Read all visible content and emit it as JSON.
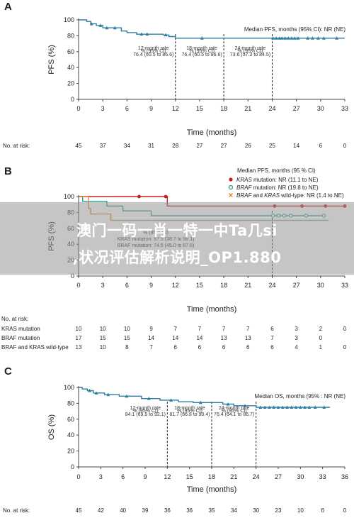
{
  "overlay": {
    "line1": "澳门一码一肖一特一中Ta几si",
    "line2": ",状况评估解析说明_OP1.880"
  },
  "colors": {
    "teal": "#2b7ea1",
    "red": "#c81e1e",
    "green": "#2a9d8f",
    "orange": "#e0872b",
    "gray": "#999999"
  },
  "chart_data": [
    {
      "panel": "A",
      "type": "line",
      "xlabel": "Time (months)",
      "ylabel": "PFS (%)",
      "xlim": [
        0,
        33
      ],
      "ylim": [
        0,
        100
      ],
      "xticks": [
        0,
        3,
        6,
        9,
        12,
        15,
        18,
        21,
        24,
        27,
        30,
        33
      ],
      "yticks": [
        0,
        20,
        40,
        60,
        80,
        100
      ],
      "summary": "Median PFS, months (95% CI): NR (NE)",
      "series": [
        {
          "color_key": "teal",
          "steps": [
            [
              0,
              100
            ],
            [
              1,
              100
            ],
            [
              1,
              98
            ],
            [
              1.5,
              98
            ],
            [
              1.5,
              95
            ],
            [
              2.2,
              95
            ],
            [
              2.2,
              93
            ],
            [
              3,
              93
            ],
            [
              3,
              90
            ],
            [
              5.3,
              90
            ],
            [
              5.3,
              86
            ],
            [
              6,
              86
            ],
            [
              6,
              84
            ],
            [
              7.2,
              84
            ],
            [
              7.2,
              82
            ],
            [
              10.5,
              82
            ],
            [
              10.5,
              81
            ],
            [
              11.2,
              81
            ],
            [
              11.2,
              79
            ],
            [
              12,
              79
            ],
            [
              12,
              77
            ],
            [
              33,
              77
            ]
          ],
          "censors": [
            [
              1.6,
              95
            ],
            [
              2.7,
              93
            ],
            [
              3.5,
              90
            ],
            [
              4.5,
              90
            ],
            [
              7.8,
              82
            ],
            [
              8.5,
              82
            ],
            [
              10.8,
              81
            ],
            [
              15.3,
              77
            ],
            [
              24.1,
              77
            ],
            [
              24.5,
              77
            ],
            [
              24.9,
              77
            ],
            [
              25.2,
              77
            ],
            [
              25.6,
              77
            ],
            [
              26,
              77
            ],
            [
              26.4,
              77
            ],
            [
              26.8,
              77
            ],
            [
              27.2,
              77
            ],
            [
              28.4,
              77
            ],
            [
              29,
              77
            ],
            [
              29.7,
              77
            ],
            [
              30.4,
              77
            ],
            [
              32,
              77
            ]
          ]
        }
      ],
      "landmarks": [
        {
          "month": 12,
          "lines": [
            "12-month rate",
            "% (95% CI)",
            "76.4 (60.5 to 86.6)"
          ]
        },
        {
          "month": 18,
          "lines": [
            "18-month rate",
            "% (95% CI)",
            "76.4 (60.5 to 86.6)"
          ]
        },
        {
          "month": 24,
          "lines": [
            "24-month rate",
            "% (95% CI)",
            "73.6 (57.2 to 84.5)"
          ]
        }
      ],
      "risk_table": {
        "title": "No. at risk:",
        "rows": [
          {
            "label": "",
            "values": [
              "45",
              "37",
              "34",
              "31",
              "28",
              "27",
              "27",
              "26",
              "25",
              "14",
              "6",
              "0"
            ]
          }
        ]
      }
    },
    {
      "panel": "B",
      "type": "line",
      "xlabel": "Time (months)",
      "ylabel": "PFS (%)",
      "xlim": [
        0,
        33
      ],
      "ylim": [
        0,
        100
      ],
      "xticks": [
        0,
        3,
        6,
        9,
        12,
        15,
        18,
        21,
        24,
        27,
        30,
        33
      ],
      "yticks": [
        0,
        20,
        40,
        60,
        80,
        100
      ],
      "summary": "Median PFS, months (95 % CI)",
      "series": [
        {
          "name": "KRAS mutation: NR (11.1 to NE)",
          "color_key": "red",
          "marker": "dot",
          "steps": [
            [
              0,
              100
            ],
            [
              11,
              100
            ],
            [
              11,
              88
            ],
            [
              33,
              88
            ]
          ],
          "censors": [
            [
              7.5,
              100
            ],
            [
              10.8,
              100
            ],
            [
              24.3,
              88
            ],
            [
              27.7,
              88
            ],
            [
              30.6,
              88
            ],
            [
              33,
              88
            ]
          ]
        },
        {
          "name": "BRAF mutation: NR (19.8 to NE)",
          "color_key": "green",
          "marker": "circle",
          "steps": [
            [
              0,
              100
            ],
            [
              0.5,
              100
            ],
            [
              0.5,
              94
            ],
            [
              3.5,
              94
            ],
            [
              3.5,
              88
            ],
            [
              5.5,
              88
            ],
            [
              5.5,
              82
            ],
            [
              9,
              82
            ],
            [
              9,
              76
            ],
            [
              30.5,
              76
            ]
          ],
          "censors": [
            [
              24.1,
              76
            ],
            [
              24.8,
              76
            ],
            [
              25.5,
              76
            ],
            [
              26.3,
              76
            ],
            [
              28.2,
              76
            ],
            [
              30.4,
              76
            ]
          ]
        },
        {
          "name": "BRAF and KRAS wild-type: NR (1.4 to NE)",
          "color_key": "orange",
          "marker": "x",
          "steps": [
            [
              0,
              100
            ],
            [
              1.2,
              100
            ],
            [
              1.2,
              85
            ],
            [
              1.5,
              85
            ],
            [
              1.5,
              78
            ],
            [
              4,
              78
            ],
            [
              4,
              70
            ],
            [
              5,
              70
            ]
          ],
          "censors": []
        },
        {
          "name": "",
          "color_key": "gray",
          "marker": "none",
          "steps": [
            [
              5,
              70
            ],
            [
              31,
              70
            ]
          ],
          "censors": []
        }
      ],
      "hidden_rate_lines": [
        "% (95% CI)",
        "KRAS mutation: 87.5 (38.7 to 98.1)",
        "BRAF mutation: 74.5 (45.0 to 87.8)"
      ],
      "landmarks": [
        {
          "month": 24
        }
      ],
      "risk_table": {
        "title": "No. at risk:",
        "rows": [
          {
            "label": "KRAS mutation",
            "values": [
              "10",
              "10",
              "10",
              "9",
              "7",
              "7",
              "7",
              "7",
              "6",
              "3",
              "2",
              "0"
            ]
          },
          {
            "label": "BRAF mutation",
            "values": [
              "17",
              "15",
              "15",
              "14",
              "14",
              "14",
              "13",
              "13",
              "7",
              "3",
              "0",
              ""
            ]
          },
          {
            "label": "BRAF and KRAS wild-type",
            "values": [
              "13",
              "10",
              "8",
              "7",
              "6",
              "6",
              "6",
              "6",
              "6",
              "4",
              "1",
              "0"
            ]
          }
        ]
      }
    },
    {
      "panel": "C",
      "type": "line",
      "xlabel": "Time (months)",
      "ylabel": "OS (%)",
      "xlim": [
        0,
        36
      ],
      "ylim": [
        0,
        100
      ],
      "xticks": [
        0,
        3,
        6,
        9,
        12,
        15,
        18,
        21,
        24,
        27,
        30,
        33,
        36
      ],
      "yticks": [
        0,
        20,
        40,
        60,
        80,
        100
      ],
      "summary": "Median OS, months (95% : NR (NE)",
      "series": [
        {
          "color_key": "teal",
          "steps": [
            [
              0,
              100
            ],
            [
              0.5,
              100
            ],
            [
              0.5,
              98
            ],
            [
              1.2,
              98
            ],
            [
              1.2,
              96
            ],
            [
              2,
              96
            ],
            [
              2,
              93
            ],
            [
              3.5,
              93
            ],
            [
              3.5,
              91
            ],
            [
              5.5,
              91
            ],
            [
              5.5,
              89
            ],
            [
              8.5,
              89
            ],
            [
              8.5,
              86
            ],
            [
              11,
              86
            ],
            [
              11,
              84
            ],
            [
              13.5,
              84
            ],
            [
              13.5,
              82
            ],
            [
              15.5,
              82
            ],
            [
              15.5,
              81
            ],
            [
              19.5,
              81
            ],
            [
              19.5,
              79
            ],
            [
              21,
              79
            ],
            [
              21,
              77
            ],
            [
              24,
              77
            ],
            [
              24,
              75
            ],
            [
              34,
              75
            ]
          ],
          "censors": [
            [
              1.5,
              96
            ],
            [
              2.4,
              93
            ],
            [
              4,
              91
            ],
            [
              6.5,
              89
            ],
            [
              9.5,
              86
            ],
            [
              12.5,
              84
            ],
            [
              16.5,
              81
            ],
            [
              20.2,
              79
            ],
            [
              22.5,
              77
            ],
            [
              24.6,
              75
            ],
            [
              25.2,
              75
            ],
            [
              25.8,
              75
            ],
            [
              26.4,
              75
            ],
            [
              27,
              75
            ],
            [
              27.6,
              75
            ],
            [
              28.2,
              75
            ],
            [
              28.8,
              75
            ],
            [
              29.4,
              75
            ],
            [
              30,
              75
            ],
            [
              30.6,
              75
            ],
            [
              31.2,
              75
            ],
            [
              32,
              75
            ],
            [
              33.2,
              75
            ]
          ]
        }
      ],
      "landmarks": [
        {
          "month": 12,
          "lines": [
            "12-month rate",
            "% (95% CI)",
            "84.1 (69.5 to 92.1)"
          ]
        },
        {
          "month": 18,
          "lines": [
            "18-month rate",
            "% (95% CI)",
            "81.7 (66.8 to 90.4)"
          ]
        },
        {
          "month": 24,
          "lines": [
            "24-month rate",
            "% (95% CI)",
            "76.4 (64.1 to 86.7)"
          ]
        }
      ],
      "risk_table": {
        "title": "No. at risk:",
        "rows": [
          {
            "label": "",
            "values": [
              "45",
              "42",
              "40",
              "39",
              "36",
              "36",
              "35",
              "34",
              "30",
              "23",
              "10",
              "6",
              "0"
            ]
          }
        ]
      }
    }
  ],
  "labels": {
    "panel_a": "A",
    "panel_b": "B",
    "panel_c": "C",
    "legend_b": [
      {
        "italic1": "KRAS",
        "rest": " mutation: NR (11.1 to NE)"
      },
      {
        "italic1": "BRAF",
        "rest": " mutation: NR (19.8 to NE)"
      },
      {
        "italic1": "BRAF",
        "mid": " and ",
        "italic2": "KRAS",
        "rest": " wild-type: NR (1.4 to NE)"
      }
    ]
  }
}
